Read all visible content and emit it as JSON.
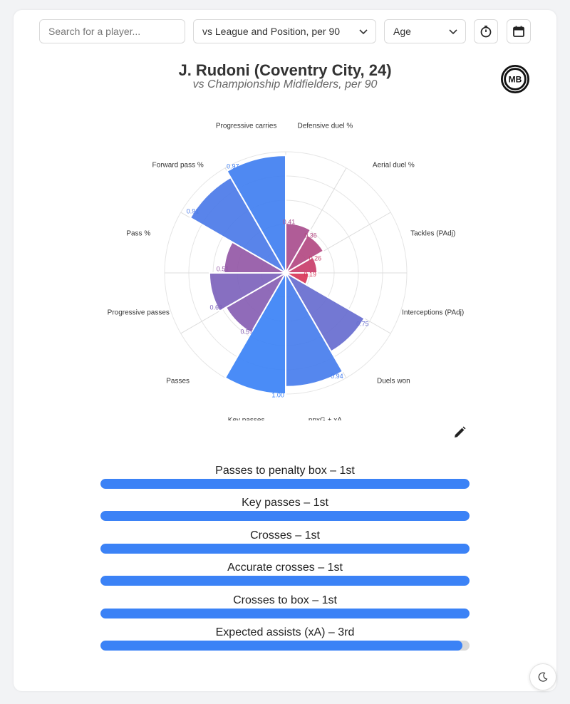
{
  "controls": {
    "search_placeholder": "Search for a player...",
    "comparison_select": "vs League and Position, per 90",
    "age_select": "Age"
  },
  "header": {
    "title": "J. Rudoni (Coventry City, 24)",
    "subtitle": "vs Championship Midfielders, per 90",
    "logo_text": "MB"
  },
  "chart_data": {
    "type": "polar-bar",
    "title": "J. Rudoni (Coventry City, 24)",
    "subtitle": "vs Championship Midfielders, per 90",
    "rlim": [
      0,
      1
    ],
    "grid": true,
    "categories": [
      {
        "label": "Defensive duel %",
        "value": 0.41
      },
      {
        "label": "Aerial duel %",
        "value": 0.36
      },
      {
        "label": "Tackles (PAdj)",
        "value": 0.26
      },
      {
        "label": "Interceptions (PAdj)",
        "value": 0.19
      },
      {
        "label": "Duels won",
        "value": 0.75
      },
      {
        "label": "npxG + xA",
        "value": 0.94
      },
      {
        "label": "Key passes",
        "value": 1.0
      },
      {
        "label": "Passes",
        "value": 0.57
      },
      {
        "label": "Progressive passes",
        "value": 0.63
      },
      {
        "label": "Pass %",
        "value": 0.51
      },
      {
        "label": "Forward pass %",
        "value": 0.91
      },
      {
        "label": "Progressive carries",
        "value": 0.97
      }
    ],
    "value_labels": [
      "0.41",
      "0.36",
      "0.26",
      "0.19",
      "0.75",
      "0.94",
      "1.00",
      "0.57",
      "0.63",
      "0.51",
      "0.91",
      "0.97"
    ],
    "colors": {
      "low": "#e0334f",
      "mid": "#8b5cb0",
      "high": "#3b82f6"
    }
  },
  "ranks": [
    {
      "label": "Passes to penalty box – 1st",
      "percentile": 1.0
    },
    {
      "label": "Key passes – 1st",
      "percentile": 1.0
    },
    {
      "label": "Crosses – 1st",
      "percentile": 1.0
    },
    {
      "label": "Accurate crosses – 1st",
      "percentile": 1.0
    },
    {
      "label": "Crosses to box – 1st",
      "percentile": 1.0
    },
    {
      "label": "Expected assists (xA) – 3rd",
      "percentile": 0.98
    }
  ],
  "icons": {
    "timer": "timer-icon",
    "calendar": "calendar-icon",
    "edit": "pencil-icon",
    "dark_mode": "moon-icon",
    "dropdown": "chevron-down-icon"
  }
}
